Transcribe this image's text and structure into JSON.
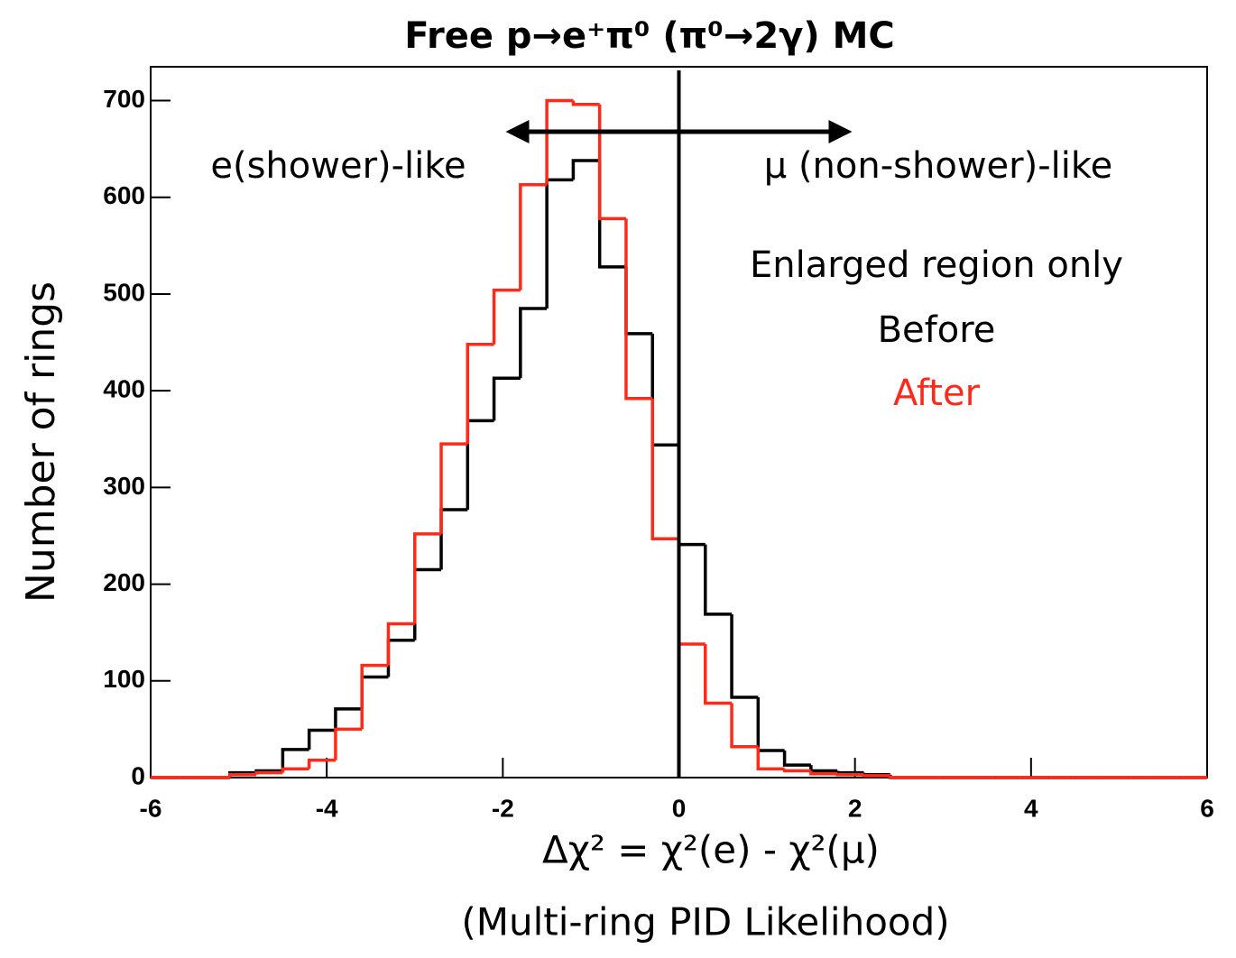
{
  "chart_data": {
    "type": "histogram",
    "title": "Free p→e⁺π⁰ (π⁰→2γ) MC",
    "x_label": "Δχ² = χ²(e) - χ²(μ)",
    "x_sublabel": "(Multi-ring PID Likelihood)",
    "y_label": "Number of rings",
    "annotations": [
      "e(shower)-like",
      "μ (non-shower)-like",
      "Enlarged region only"
    ],
    "cut_x": 0,
    "bins": [
      -6,
      -5.7,
      -5.4,
      -5.1,
      -4.8,
      -4.5,
      -4.2,
      -3.9,
      -3.6,
      -3.3,
      -3,
      -2.7,
      -2.4,
      -2.1,
      -1.8,
      -1.5,
      -1.2,
      -0.9,
      -0.6,
      -0.3,
      0,
      0.3,
      0.6,
      0.9,
      1.2,
      1.5,
      1.8,
      2.1,
      2.4,
      2.7,
      3,
      3.3,
      3.6,
      3.9,
      4.2,
      4.5,
      4.8,
      5.1,
      5.4,
      5.7,
      6
    ],
    "series": [
      {
        "name": "Before",
        "color": "#000000",
        "values": [
          0,
          0,
          0,
          5,
          7,
          29,
          49,
          71,
          104,
          142,
          215,
          277,
          369,
          413,
          485,
          618,
          638,
          528,
          459,
          344,
          241,
          169,
          83,
          28,
          13,
          7,
          5,
          3,
          0,
          0,
          0,
          0,
          0,
          0,
          0,
          0,
          0,
          0,
          0,
          0
        ]
      },
      {
        "name": "After",
        "color": "#ff2a1a",
        "values": [
          0,
          0,
          0,
          3,
          5,
          9,
          18,
          50,
          116,
          159,
          252,
          345,
          448,
          504,
          613,
          700,
          696,
          578,
          392,
          247,
          138,
          77,
          32,
          9,
          7,
          4,
          3,
          2,
          0,
          0,
          0,
          0,
          0,
          0,
          0,
          0,
          0,
          0,
          0,
          0
        ]
      }
    ],
    "xlim": [
      -6,
      6
    ],
    "ylim": [
      0,
      735
    ],
    "xticks": [
      -6,
      -4,
      -2,
      0,
      2,
      4,
      6
    ],
    "yticks": [
      0,
      100,
      200,
      300,
      400,
      500,
      600,
      700
    ]
  }
}
